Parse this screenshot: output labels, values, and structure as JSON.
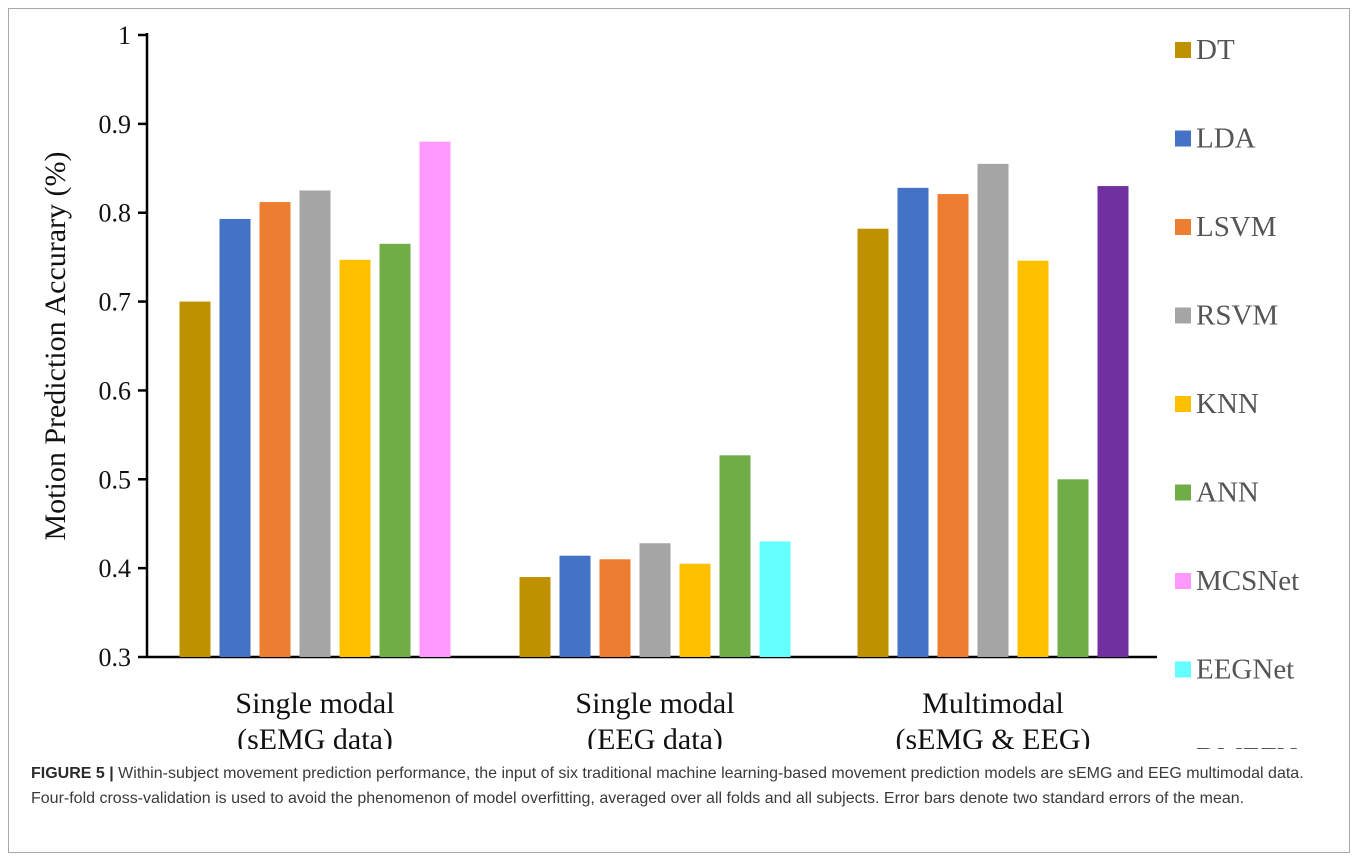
{
  "chart_data": {
    "type": "bar",
    "ylabel": "Motion Prediction Accurary (%)",
    "xlabel": "",
    "ylim": [
      0.3,
      1.0
    ],
    "yticks": [
      "0.3",
      "0.4",
      "0.5",
      "0.6",
      "0.7",
      "0.8",
      "0.9",
      "1"
    ],
    "grid": false,
    "legend_position": "right",
    "categories": [
      [
        "Single modal",
        "(sEMG data)"
      ],
      [
        "Single modal",
        "(EEG data)"
      ],
      [
        "Multimodal",
        "(sEMG & EEG)"
      ]
    ],
    "series": [
      {
        "name": "DT",
        "color": "#bf9000",
        "values": [
          0.7,
          0.39,
          0.782
        ]
      },
      {
        "name": "LDA",
        "color": "#4472c4",
        "values": [
          0.793,
          0.414,
          0.828
        ]
      },
      {
        "name": "LSVM",
        "color": "#ed7d31",
        "values": [
          0.812,
          0.41,
          0.821
        ]
      },
      {
        "name": "RSVM",
        "color": "#a5a5a5",
        "values": [
          0.825,
          0.428,
          0.855
        ]
      },
      {
        "name": "KNN",
        "color": "#ffc000",
        "values": [
          0.747,
          0.405,
          0.746
        ]
      },
      {
        "name": "ANN",
        "color": "#70ad47",
        "values": [
          0.765,
          0.527,
          0.5
        ]
      },
      {
        "name": "MCSNet",
        "color": "#ff99ff",
        "values": [
          0.88,
          null,
          null
        ]
      },
      {
        "name": "EEGNet",
        "color": "#66ffff",
        "values": [
          null,
          0.43,
          null
        ]
      },
      {
        "name": "DMEFNet",
        "color": "#7030a0",
        "values": [
          null,
          null,
          0.83
        ]
      }
    ]
  },
  "caption": {
    "label": "FIGURE 5 |",
    "text": "Within-subject movement prediction performance, the input of six traditional machine learning-based movement prediction models are sEMG and EEG multimodal data. Four-fold cross-validation is used to avoid the phenomenon of model overfitting, averaged over all folds and all subjects. Error bars denote two standard errors of the mean."
  }
}
